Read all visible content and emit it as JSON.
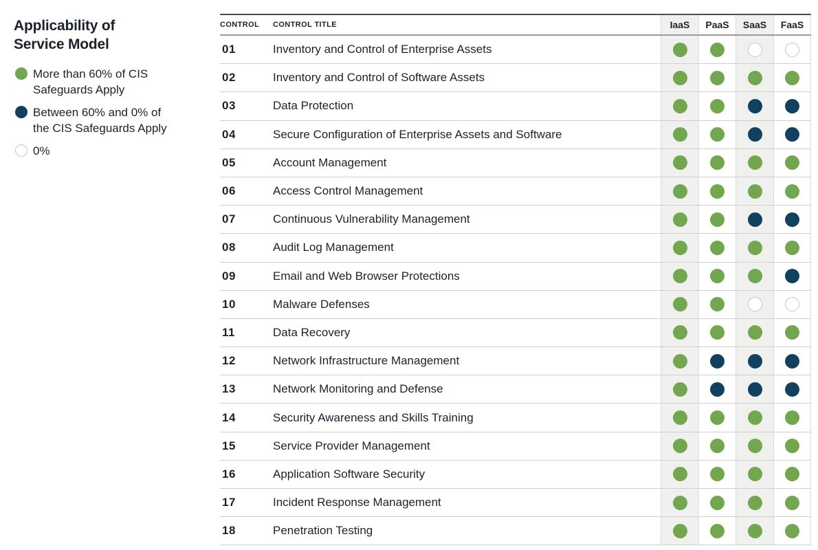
{
  "legend": {
    "title_line1": "Applicability of",
    "title_line2": "Service Model",
    "items": [
      {
        "key": "green",
        "label": "More than 60% of CIS Safeguards Apply"
      },
      {
        "key": "navy",
        "label": "Between 60% and 0% of the CIS Safeguards Apply"
      },
      {
        "key": "none",
        "label": "0%"
      }
    ]
  },
  "table": {
    "header": {
      "control": "CONTROL",
      "control_title": "CONTROL TITLE",
      "services": [
        "IaaS",
        "PaaS",
        "SaaS",
        "FaaS"
      ]
    },
    "rows": [
      {
        "control": "01",
        "title": "Inventory and Control of Enterprise Assets",
        "applicability": [
          "green",
          "green",
          "none",
          "none"
        ]
      },
      {
        "control": "02",
        "title": "Inventory and Control of Software Assets",
        "applicability": [
          "green",
          "green",
          "green",
          "green"
        ]
      },
      {
        "control": "03",
        "title": "Data Protection",
        "applicability": [
          "green",
          "green",
          "navy",
          "navy"
        ]
      },
      {
        "control": "04",
        "title": "Secure Configuration of Enterprise Assets and Software",
        "applicability": [
          "green",
          "green",
          "navy",
          "navy"
        ]
      },
      {
        "control": "05",
        "title": "Account Management",
        "applicability": [
          "green",
          "green",
          "green",
          "green"
        ]
      },
      {
        "control": "06",
        "title": "Access Control Management",
        "applicability": [
          "green",
          "green",
          "green",
          "green"
        ]
      },
      {
        "control": "07",
        "title": "Continuous Vulnerability Management",
        "applicability": [
          "green",
          "green",
          "navy",
          "navy"
        ]
      },
      {
        "control": "08",
        "title": "Audit Log Management",
        "applicability": [
          "green",
          "green",
          "green",
          "green"
        ]
      },
      {
        "control": "09",
        "title": "Email and Web Browser Protections",
        "applicability": [
          "green",
          "green",
          "green",
          "navy"
        ]
      },
      {
        "control": "10",
        "title": "Malware Defenses",
        "applicability": [
          "green",
          "green",
          "none",
          "none"
        ]
      },
      {
        "control": "11",
        "title": "Data Recovery",
        "applicability": [
          "green",
          "green",
          "green",
          "green"
        ]
      },
      {
        "control": "12",
        "title": "Network Infrastructure Management",
        "applicability": [
          "green",
          "navy",
          "navy",
          "navy"
        ]
      },
      {
        "control": "13",
        "title": "Network Monitoring and Defense",
        "applicability": [
          "green",
          "navy",
          "navy",
          "navy"
        ]
      },
      {
        "control": "14",
        "title": "Security Awareness and Skills Training",
        "applicability": [
          "green",
          "green",
          "green",
          "green"
        ]
      },
      {
        "control": "15",
        "title": "Service Provider Management",
        "applicability": [
          "green",
          "green",
          "green",
          "green"
        ]
      },
      {
        "control": "16",
        "title": "Application Software Security",
        "applicability": [
          "green",
          "green",
          "green",
          "green"
        ]
      },
      {
        "control": "17",
        "title": "Incident Response Management",
        "applicability": [
          "green",
          "green",
          "green",
          "green"
        ]
      },
      {
        "control": "18",
        "title": "Penetration Testing",
        "applicability": [
          "green",
          "green",
          "green",
          "green"
        ]
      }
    ]
  },
  "colors": {
    "green": "#72a64f",
    "navy": "#12405f",
    "empty_border": "#c6c6c6",
    "column_stripe": "#f0f0ee",
    "line": "#cfcfcf",
    "text": "#1b222c"
  }
}
